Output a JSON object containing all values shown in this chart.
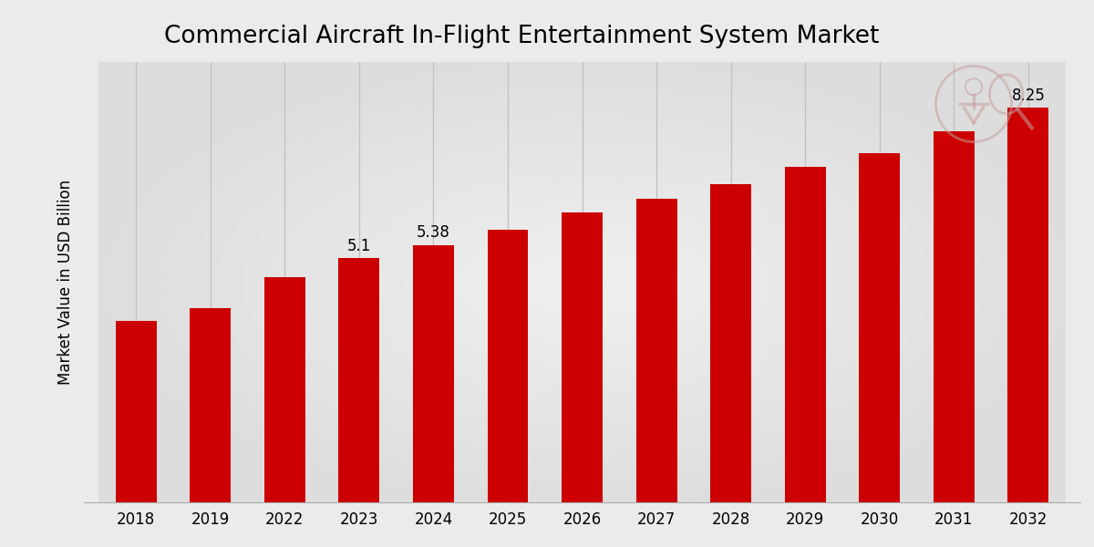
{
  "title": "Commercial Aircraft In-Flight Entertainment System Market",
  "ylabel": "Market Value in USD Billion",
  "categories": [
    "2018",
    "2019",
    "2022",
    "2023",
    "2024",
    "2025",
    "2026",
    "2027",
    "2028",
    "2029",
    "2030",
    "2031",
    "2032"
  ],
  "values": [
    3.8,
    4.05,
    4.7,
    5.1,
    5.38,
    5.7,
    6.05,
    6.35,
    6.65,
    7.0,
    7.3,
    7.75,
    8.25
  ],
  "labeled_indices": [
    3,
    4,
    12
  ],
  "labels": [
    "5.1",
    "5.38",
    "8.25"
  ],
  "bar_color": "#CC0000",
  "bg_light": "#EBEBEB",
  "bg_dark": "#D0D0D0",
  "grid_color": "#C0C0C0",
  "title_fontsize": 19,
  "ylabel_fontsize": 12,
  "tick_fontsize": 12,
  "label_fontsize": 12,
  "ylim": [
    0,
    9.2
  ],
  "bar_width": 0.55
}
